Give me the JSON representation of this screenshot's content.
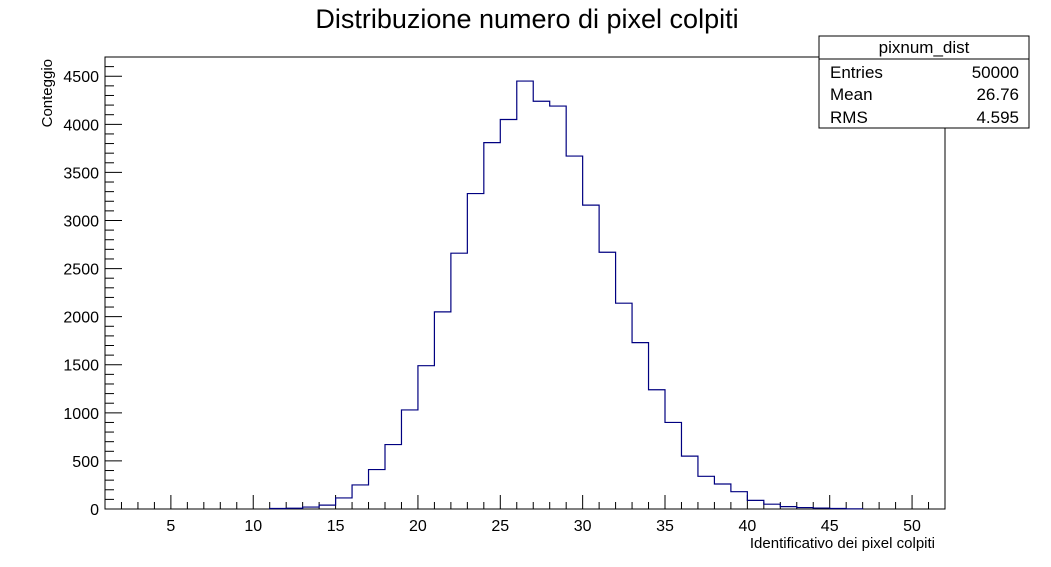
{
  "chart_data": {
    "type": "bar",
    "style": "step-histogram",
    "title": "Distribuzione numero di pixel colpiti",
    "xlabel": "Identificativo dei pixel colpiti",
    "ylabel": "Conteggio",
    "xlim": [
      1,
      52
    ],
    "ylim": [
      0,
      4700
    ],
    "bin_width": 1,
    "bin_low_edges": [
      11,
      12,
      13,
      14,
      15,
      16,
      17,
      18,
      19,
      20,
      21,
      22,
      23,
      24,
      25,
      26,
      27,
      28,
      29,
      30,
      31,
      32,
      33,
      34,
      35,
      36,
      37,
      38,
      39,
      40,
      41,
      42,
      43,
      44,
      45,
      46
    ],
    "values": [
      5,
      8,
      20,
      40,
      115,
      250,
      410,
      670,
      1030,
      1490,
      2050,
      2660,
      3280,
      3810,
      4050,
      4450,
      4240,
      4190,
      3670,
      3160,
      2670,
      2140,
      1730,
      1240,
      900,
      550,
      340,
      260,
      180,
      90,
      50,
      25,
      15,
      10,
      5,
      2
    ],
    "x_ticks": [
      "5",
      "10",
      "15",
      "20",
      "25",
      "30",
      "35",
      "40",
      "45",
      "50"
    ],
    "y_ticks": [
      "0",
      "500",
      "1000",
      "1500",
      "2000",
      "2500",
      "3000",
      "3500",
      "4000",
      "4500"
    ],
    "series": [
      {
        "name": "pixnum_dist",
        "color": "#000080"
      }
    ],
    "stats_box": {
      "name": "pixnum_dist",
      "rows": [
        {
          "label": "Entries",
          "value": "50000"
        },
        {
          "label": "Mean",
          "value": "26.76"
        },
        {
          "label": "RMS",
          "value": "4.595"
        }
      ]
    },
    "grid": false
  }
}
